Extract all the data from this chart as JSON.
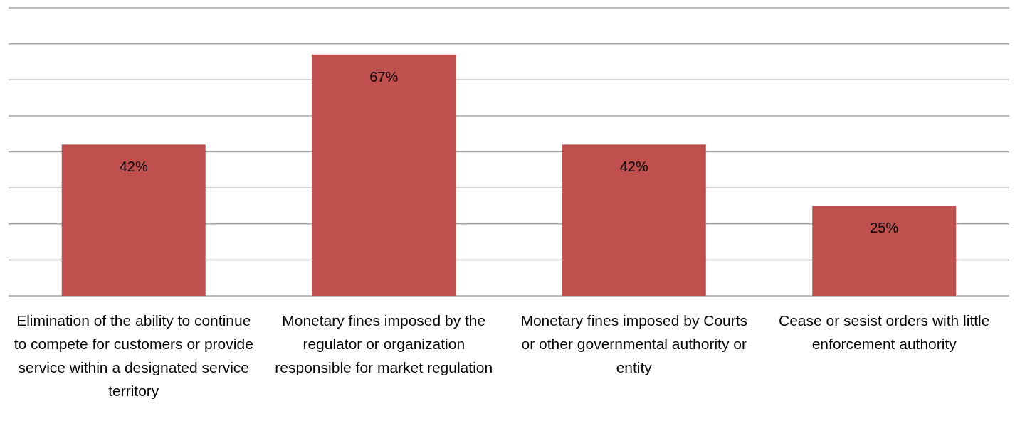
{
  "chart_data": {
    "type": "bar",
    "categories": [
      "Elimination of the ability to continue to compete for customers or provide service within a designated service territory",
      "Monetary fines imposed by the regulator or organization responsible for market regulation",
      "Monetary fines imposed by Courts or other governmental authority or entity",
      "Cease or sesist orders with little enforcement authority"
    ],
    "values": [
      42,
      67,
      42,
      25
    ],
    "value_labels": [
      "42%",
      "67%",
      "42%",
      "25%"
    ],
    "color": "#c0504d",
    "ylim": [
      0,
      80
    ],
    "yticks": [
      {
        "value": 0,
        "label": null
      },
      {
        "value": 10,
        "label": null
      },
      {
        "value": 20,
        "label": null
      },
      {
        "value": 30,
        "label": null
      },
      {
        "value": 40,
        "label": null
      },
      {
        "value": 50,
        "label": null
      },
      {
        "value": 60,
        "label": null
      },
      {
        "value": 70,
        "label": null
      },
      {
        "value": 80,
        "label": null
      }
    ],
    "grid": "y",
    "tick_labels": "x"
  }
}
